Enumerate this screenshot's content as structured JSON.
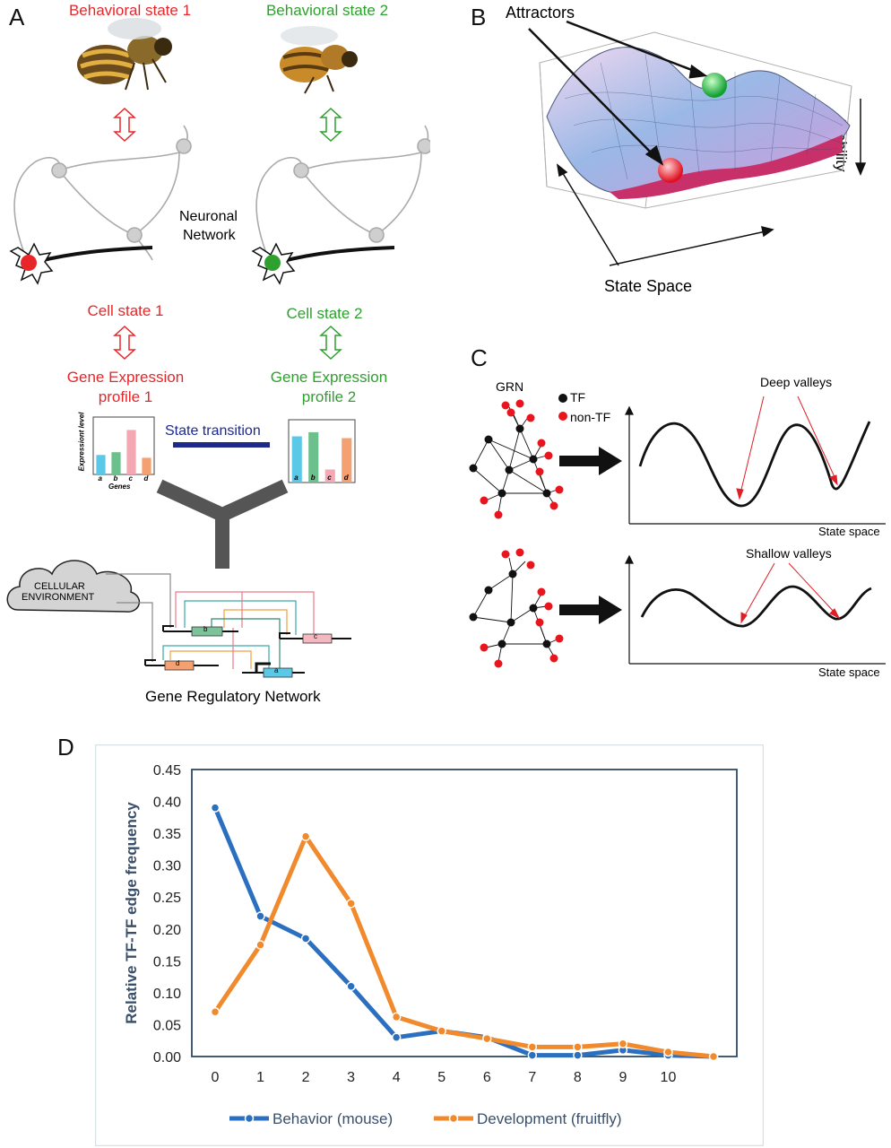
{
  "panel_a": {
    "letter": "A",
    "state1_label": "Behavioral state 1",
    "state2_label": "Behavioral state 2",
    "neuronal_network_line1": "Neuronal",
    "neuronal_network_line2": "Network",
    "cell_state1": "Cell state 1",
    "cell_state2": "Cell state 2",
    "gep1_line1": "Gene Expression",
    "gep1_line2": "profile 1",
    "gep2_line1": "Gene Expression",
    "gep2_line2": "profile 2",
    "state_transition": "State transition",
    "bar_ylabel": "Expressiont level",
    "bar_xlabel": "Genes",
    "genes": [
      "a",
      "b",
      "c",
      "d"
    ],
    "profile1_values": [
      0.35,
      0.4,
      0.8,
      0.3
    ],
    "profile2_values": [
      0.78,
      0.85,
      0.22,
      0.75
    ],
    "cellular_env_line1": "CELLULAR",
    "cellular_env_line2": "ENVIRONMENT",
    "grn_title": "Gene Regulatory Network",
    "grn_genes": [
      "b",
      "c",
      "d",
      "a"
    ]
  },
  "panel_b": {
    "letter": "B",
    "attractors": "Attractors",
    "stability": "Stability",
    "state_space": "State Space"
  },
  "panel_c": {
    "letter": "C",
    "grn": "GRN",
    "legend_tf": "TF",
    "legend_nontf": "non-TF",
    "deep_valleys": "Deep valleys",
    "shallow_valleys": "Shallow valleys",
    "state_space_1": "State space",
    "state_space_2": "State space"
  },
  "panel_d": {
    "letter": "D"
  },
  "chart_data": {
    "type": "line",
    "ylabel": "Relative TF-TF  edge frequency",
    "xlabel": "",
    "ylim": [
      0,
      0.45
    ],
    "yticks": [
      "0.00",
      "0.05",
      "0.10",
      "0.15",
      "0.20",
      "0.25",
      "0.30",
      "0.35",
      "0.40",
      "0.45"
    ],
    "x": [
      0,
      1,
      2,
      3,
      4,
      5,
      6,
      7,
      8,
      9,
      10,
      11
    ],
    "xtick_labels": [
      "0",
      "1",
      "2",
      "3",
      "4",
      "5",
      "6",
      "7",
      "8",
      "9",
      "10"
    ],
    "series": [
      {
        "name": "Behavior (mouse)",
        "color": "#2a6fc0",
        "values": [
          0.39,
          0.22,
          0.185,
          0.11,
          0.03,
          0.04,
          0.03,
          0.002,
          0.002,
          0.01,
          0.002,
          0.0
        ]
      },
      {
        "name": "Development  (fruitfly)",
        "color": "#f08a2c",
        "values": [
          0.07,
          0.175,
          0.345,
          0.24,
          0.062,
          0.04,
          0.028,
          0.015,
          0.015,
          0.02,
          0.007,
          0.0
        ]
      }
    ],
    "legend_position": "bottom"
  }
}
